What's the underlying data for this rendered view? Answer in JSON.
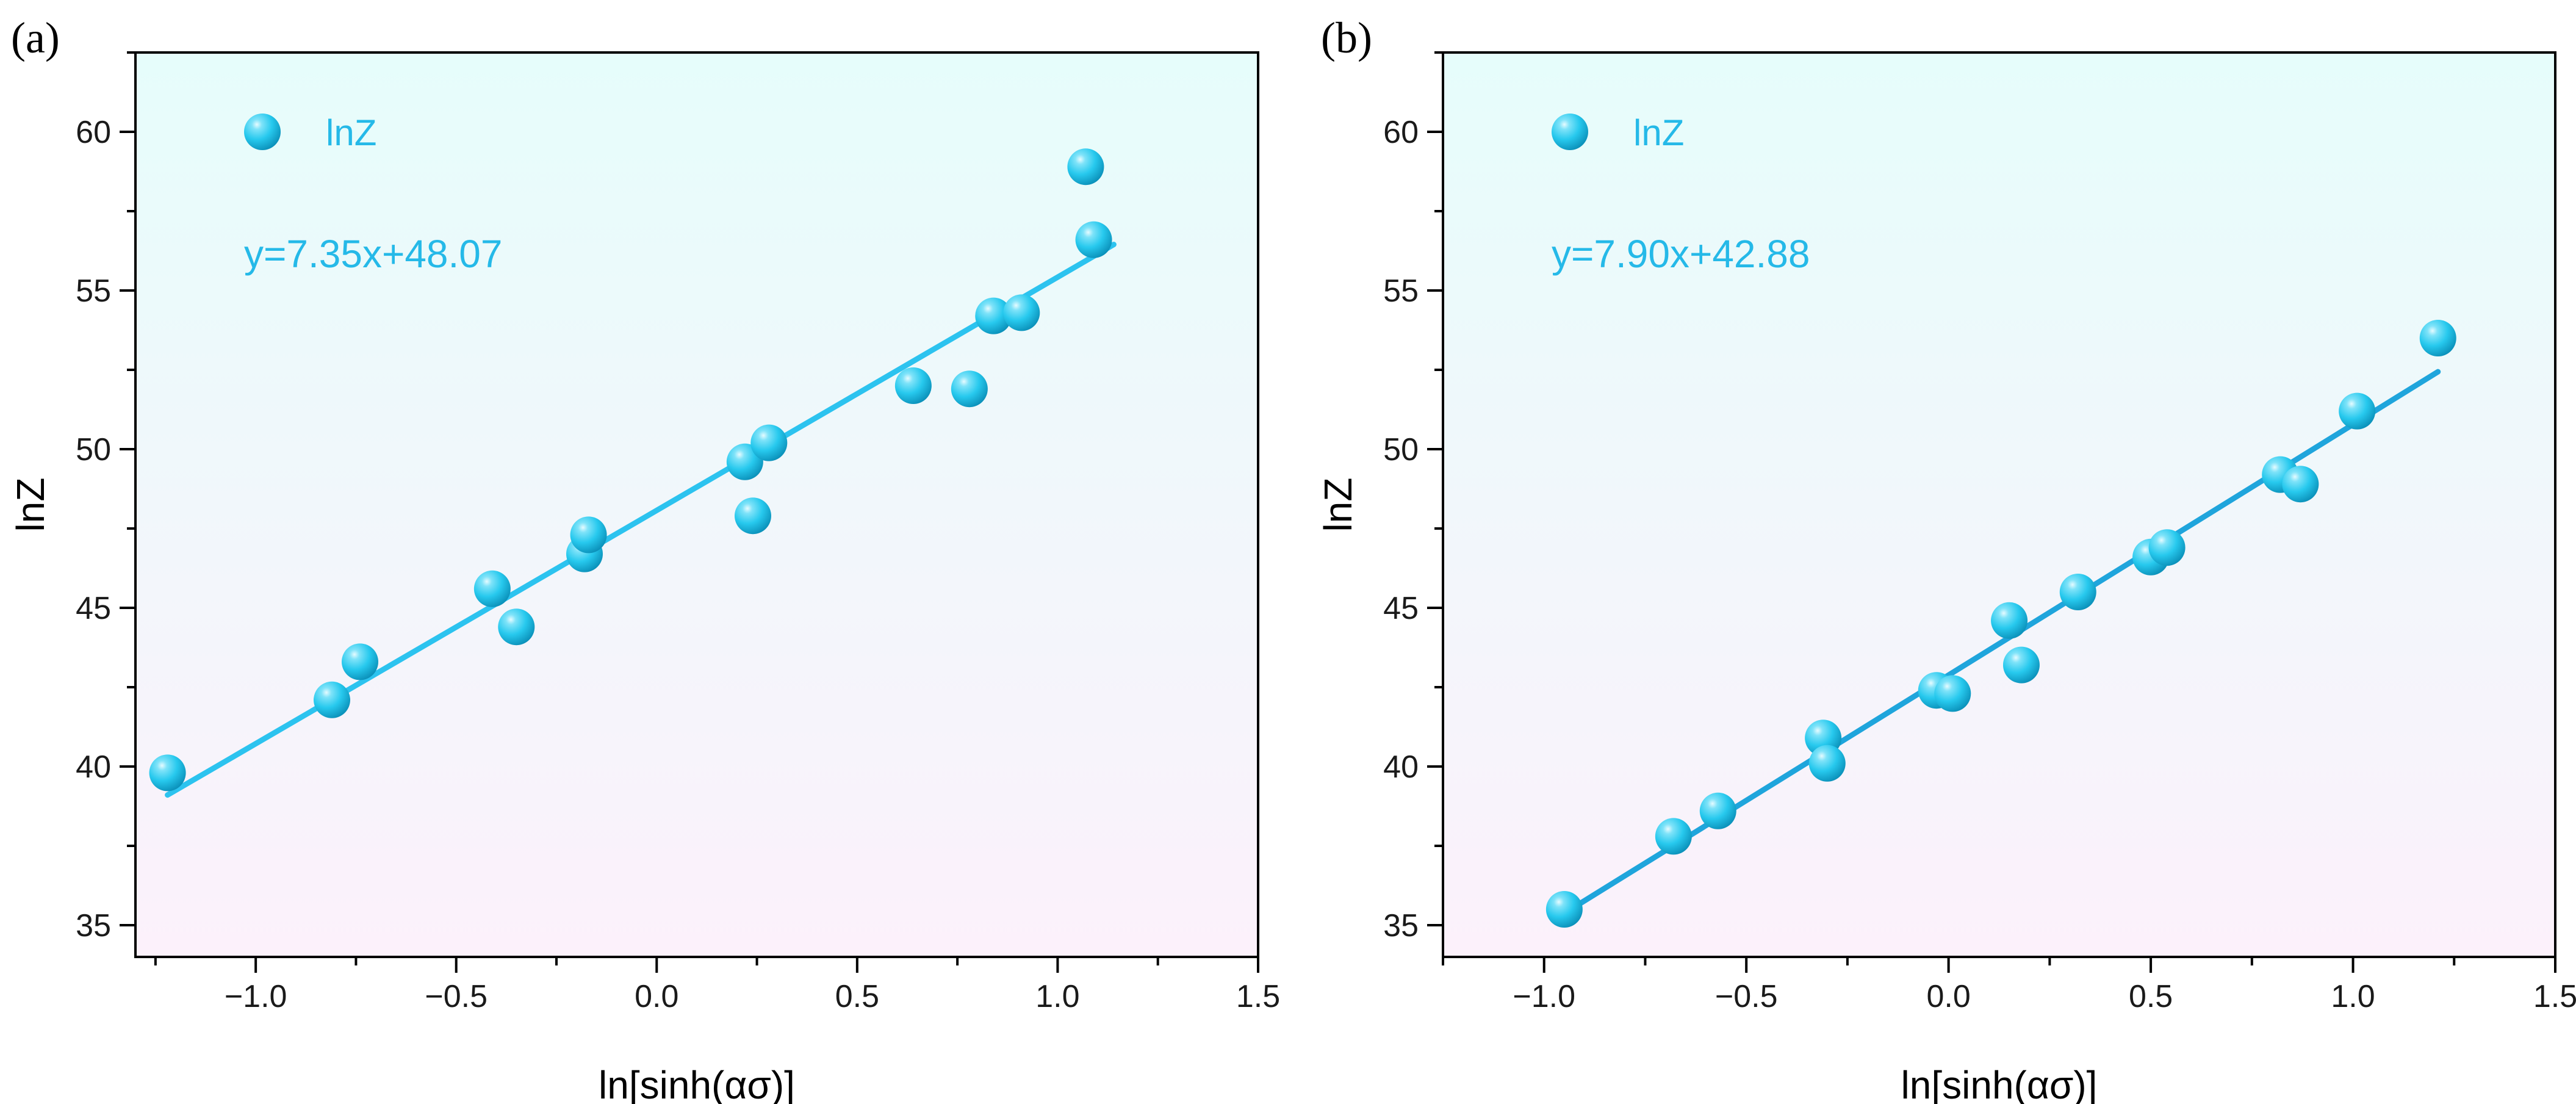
{
  "colors": {
    "marker": "#27c9ee",
    "marker_highlight": "#e6fbff",
    "marker_shadow": "#0a8fb8",
    "fit_line_a": "#2cc3ef",
    "fit_line_b": "#1fa5dc",
    "text_accent": "#25b9e8",
    "background_top": "#e6fdfb",
    "background_bottom": "#fcf1fb"
  },
  "chart_data": [
    {
      "type": "scatter",
      "panel_label": "(a)",
      "xlabel": "ln[sinh(ασ)]",
      "ylabel": "lnZ",
      "xlim": [
        -1.3,
        1.5
      ],
      "ylim": [
        34,
        62.5
      ],
      "x_ticks": [
        -1.0,
        -0.5,
        0.0,
        0.5,
        1.0,
        1.5
      ],
      "x_tick_labels": [
        "−1.0",
        "−0.5",
        "0.0",
        "0.5",
        "1.0",
        "1.5"
      ],
      "y_ticks": [
        35,
        40,
        45,
        50,
        55,
        60
      ],
      "y_tick_labels": [
        "35",
        "40",
        "45",
        "50",
        "55",
        "60"
      ],
      "legend": {
        "label": "lnZ",
        "placement": "top-left"
      },
      "equation": "y=7.35x+48.07",
      "fit": {
        "slope": 7.35,
        "intercept": 48.07,
        "x_range": [
          -1.22,
          1.14
        ]
      },
      "series": [
        {
          "name": "lnZ",
          "x": [
            -1.22,
            -0.81,
            -0.74,
            -0.41,
            -0.35,
            -0.18,
            -0.17,
            0.22,
            0.24,
            0.28,
            0.64,
            0.78,
            0.84,
            0.91,
            1.07,
            1.09
          ],
          "y": [
            39.8,
            42.1,
            43.3,
            45.6,
            44.4,
            46.7,
            47.3,
            49.6,
            47.9,
            50.2,
            52.0,
            51.9,
            54.2,
            54.3,
            58.9,
            56.6
          ]
        }
      ]
    },
    {
      "type": "scatter",
      "panel_label": "(b)",
      "xlabel": "ln[sinh(ασ)]",
      "ylabel": "lnZ",
      "xlim": [
        -1.25,
        1.5
      ],
      "ylim": [
        34,
        62.5
      ],
      "x_ticks": [
        -1.0,
        -0.5,
        0.0,
        0.5,
        1.0,
        1.5
      ],
      "x_tick_labels": [
        "−1.0",
        "−0.5",
        "0.0",
        "0.5",
        "1.0",
        "1.5"
      ],
      "y_ticks": [
        35,
        40,
        45,
        50,
        55,
        60
      ],
      "y_tick_labels": [
        "35",
        "40",
        "45",
        "50",
        "55",
        "60"
      ],
      "legend": {
        "label": "lnZ",
        "placement": "top-left"
      },
      "equation": "y=7.90x+42.88",
      "fit": {
        "slope": 7.9,
        "intercept": 42.88,
        "x_range": [
          -0.95,
          1.21
        ]
      },
      "series": [
        {
          "name": "lnZ",
          "x": [
            -0.95,
            -0.68,
            -0.57,
            -0.31,
            -0.3,
            -0.03,
            0.01,
            0.15,
            0.18,
            0.32,
            0.5,
            0.54,
            0.82,
            0.87,
            1.01,
            1.21
          ],
          "y": [
            35.5,
            37.8,
            38.6,
            40.9,
            40.1,
            42.4,
            42.3,
            44.6,
            43.2,
            45.5,
            46.6,
            46.9,
            49.2,
            48.9,
            51.2,
            53.5
          ]
        }
      ]
    }
  ]
}
